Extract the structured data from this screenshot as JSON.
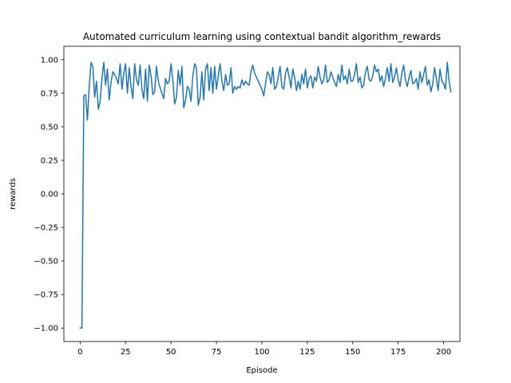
{
  "chart_data": {
    "type": "line",
    "title": "Automated curriculum learning using contextual bandit algorithm_rewards",
    "xlabel": "Episode",
    "ylabel": "rewards",
    "xlim": [
      -8.95,
      208.95
    ],
    "ylim": [
      -1.1,
      1.1
    ],
    "xticks": [
      0,
      25,
      50,
      75,
      100,
      125,
      150,
      175,
      200
    ],
    "yticks": [
      -1.0,
      -0.75,
      -0.5,
      -0.25,
      0.0,
      0.25,
      0.5,
      0.75,
      1.0
    ],
    "ytick_labels": [
      "−1.00",
      "−0.75",
      "−0.50",
      "−0.25",
      "0.00",
      "0.25",
      "0.50",
      "0.75",
      "1.00"
    ],
    "grid": false,
    "series": [
      {
        "color": "#1f77b4",
        "x_start": 0,
        "values": [
          -1.0,
          -1.0,
          0.73,
          0.74,
          0.55,
          0.8,
          0.98,
          0.95,
          0.72,
          0.84,
          0.63,
          0.69,
          0.86,
          0.98,
          0.81,
          0.93,
          0.7,
          0.83,
          0.91,
          0.89,
          0.86,
          0.82,
          0.97,
          0.78,
          0.9,
          0.97,
          0.75,
          0.94,
          0.8,
          0.71,
          0.97,
          0.85,
          0.81,
          0.96,
          0.78,
          0.71,
          0.93,
          0.69,
          0.96,
          0.88,
          0.74,
          0.76,
          0.95,
          0.84,
          0.79,
          0.75,
          0.71,
          0.86,
          0.82,
          0.84,
          0.97,
          0.85,
          0.67,
          0.72,
          0.92,
          0.81,
          0.95,
          0.64,
          0.7,
          0.8,
          0.78,
          0.69,
          0.88,
          0.97,
          0.94,
          0.66,
          0.72,
          0.91,
          0.7,
          0.93,
          0.97,
          0.77,
          0.94,
          0.75,
          0.95,
          0.78,
          0.88,
          0.97,
          0.84,
          0.77,
          0.89,
          0.81,
          0.82,
          0.94,
          0.75,
          0.8,
          0.78,
          0.8,
          0.79,
          0.85,
          0.81,
          0.84,
          0.82,
          0.81,
          0.91,
          0.96,
          0.9,
          0.87,
          0.84,
          0.81,
          0.78,
          0.73,
          0.82,
          0.91,
          0.89,
          0.82,
          0.94,
          0.78,
          0.8,
          0.87,
          0.95,
          0.8,
          0.78,
          0.9,
          0.94,
          0.87,
          0.79,
          0.93,
          0.87,
          0.77,
          0.84,
          0.78,
          0.89,
          0.82,
          0.93,
          0.79,
          0.86,
          0.88,
          0.79,
          0.87,
          0.84,
          0.95,
          0.87,
          0.82,
          0.85,
          0.96,
          0.83,
          0.85,
          0.91,
          0.87,
          0.83,
          0.8,
          0.89,
          0.83,
          0.96,
          0.85,
          0.88,
          0.82,
          0.93,
          0.84,
          0.84,
          0.89,
          0.97,
          0.83,
          0.87,
          0.79,
          0.81,
          0.91,
          0.95,
          0.85,
          0.84,
          0.88,
          0.96,
          0.91,
          0.93,
          0.84,
          0.88,
          0.8,
          0.86,
          0.94,
          0.84,
          0.97,
          0.83,
          0.87,
          0.94,
          0.85,
          0.8,
          0.9,
          0.96,
          0.85,
          0.8,
          0.87,
          0.92,
          0.82,
          0.83,
          0.86,
          0.78,
          0.91,
          0.83,
          0.89,
          0.95,
          0.81,
          0.85,
          0.76,
          0.82,
          0.94,
          0.86,
          0.77,
          0.93,
          0.84,
          0.82,
          0.78,
          0.98,
          0.84,
          0.76
        ]
      }
    ]
  }
}
